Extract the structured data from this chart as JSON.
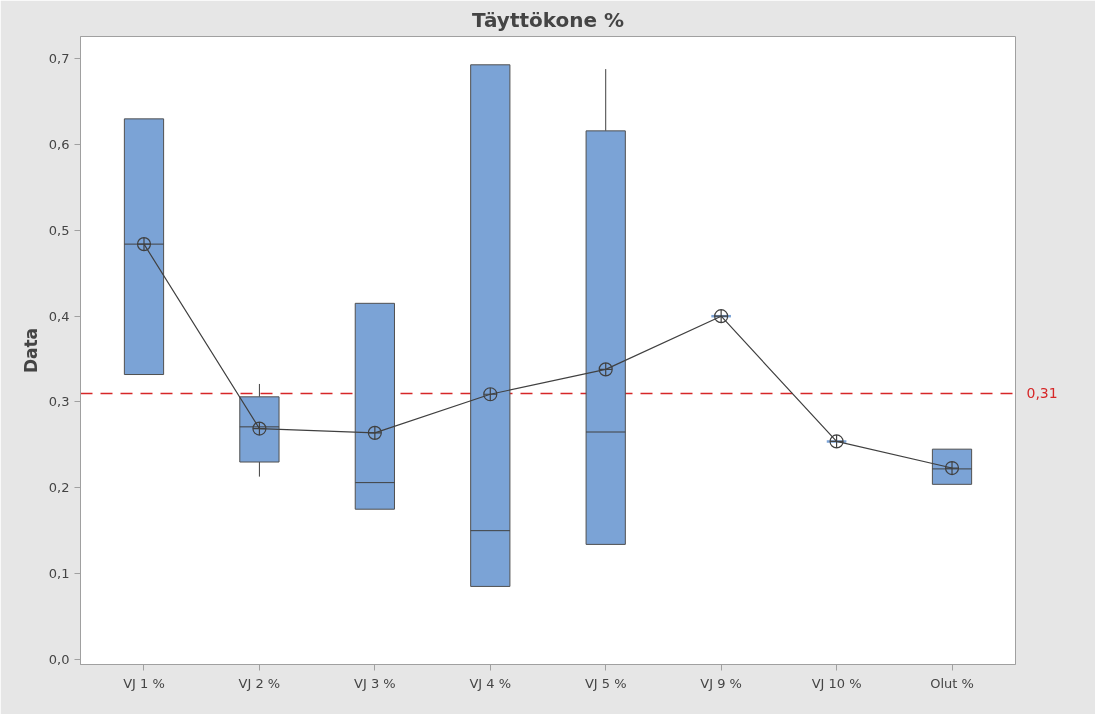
{
  "chart_data": {
    "type": "box",
    "title": "Täyttökone %",
    "ylabel": "Data",
    "categories": [
      "VJ 1 %",
      "VJ 2 %",
      "VJ 3 %",
      "VJ 4 %",
      "VJ 5 %",
      "VJ 9 %",
      "VJ 10 %",
      "Olut %"
    ],
    "ylim": [
      -0.006,
      0.726
    ],
    "yticks": [
      {
        "value": 0,
        "label": "0,0"
      },
      {
        "value": 0.1,
        "label": "0,1"
      },
      {
        "value": 0.2,
        "label": "0,2"
      },
      {
        "value": 0.3,
        "label": "0,3"
      },
      {
        "value": 0.4,
        "label": "0,4"
      },
      {
        "value": 0.5,
        "label": "0,5"
      },
      {
        "value": 0.6,
        "label": "0,6"
      },
      {
        "value": 0.7,
        "label": "0,7"
      }
    ],
    "series": [
      {
        "color": "#7ba3d6",
        "boxes": [
          {
            "low": 0.332,
            "q1": 0.332,
            "median": 0.484,
            "q3": 0.63,
            "high": 0.63
          },
          {
            "low": 0.213,
            "q1": 0.23,
            "median": 0.271,
            "q3": 0.306,
            "high": 0.321
          },
          {
            "low": 0.175,
            "q1": 0.175,
            "median": 0.206,
            "q3": 0.415,
            "high": 0.415
          },
          {
            "low": 0.085,
            "q1": 0.085,
            "median": 0.15,
            "q3": 0.693,
            "high": 0.693
          },
          {
            "low": 0.134,
            "q1": 0.134,
            "median": 0.265,
            "q3": 0.616,
            "high": 0.688
          },
          {
            "low": 0.4,
            "q1": 0.4,
            "median": 0.4,
            "q3": 0.4,
            "high": 0.4
          },
          {
            "low": 0.254,
            "q1": 0.254,
            "median": 0.254,
            "q3": 0.254,
            "high": 0.254
          },
          {
            "low": 0.204,
            "q1": 0.204,
            "median": 0.222,
            "q3": 0.245,
            "high": 0.245
          }
        ]
      },
      {
        "type": "line",
        "color": "#404040",
        "marker": "circle",
        "values": [
          0.484,
          0.269,
          0.264,
          0.309,
          0.338,
          0.4,
          0.254,
          0.223
        ]
      }
    ],
    "ref_lines": [
      {
        "axis": "y",
        "value": 0.31,
        "label": "0,31",
        "color": "#d62728",
        "line_style": "dashed"
      }
    ],
    "grid": false
  }
}
